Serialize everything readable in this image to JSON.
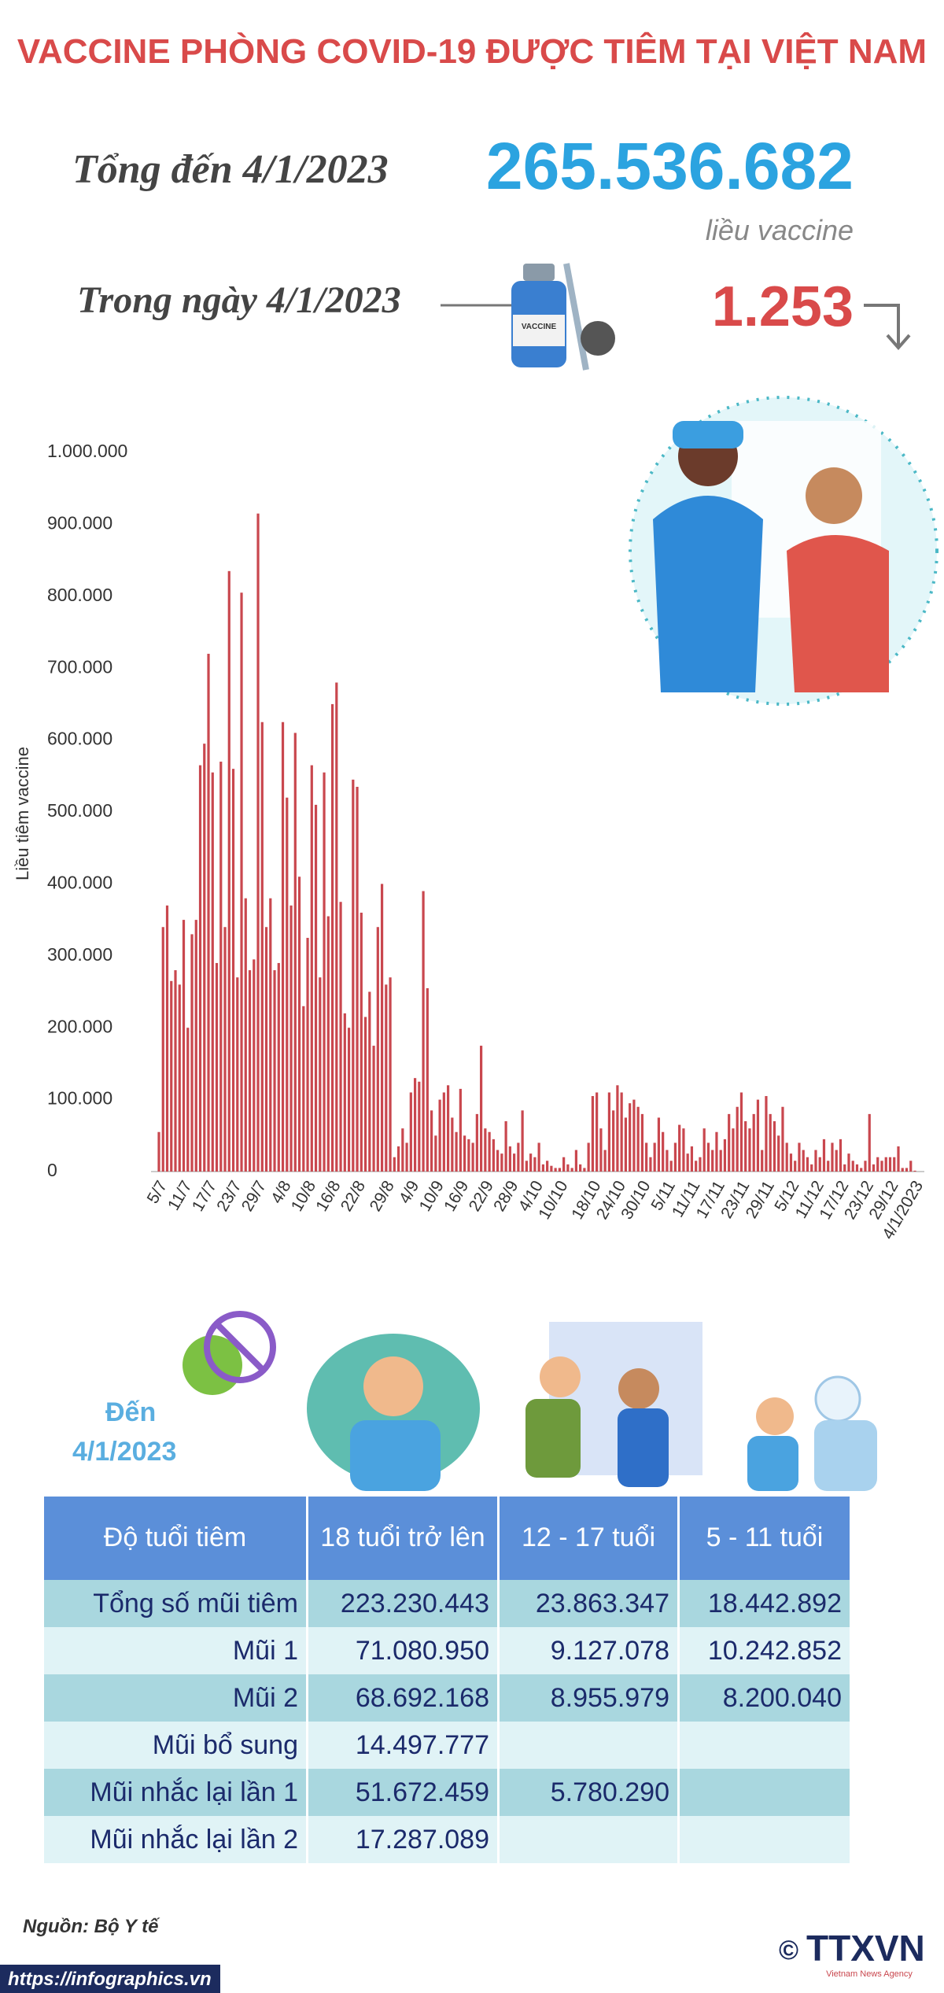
{
  "title": "VACCINE PHÒNG COVID-19 ĐƯỢC TIÊM TẠI VIỆT NAM",
  "summary": {
    "total_label": "Tổng đến 4/1/2023",
    "total_value": "265.536.682",
    "total_unit": "liều vaccine",
    "daily_label": "Trong ngày 4/1/2023",
    "daily_value": "1.253"
  },
  "illustration": {
    "vial_label": "VACCINE"
  },
  "chart_data": {
    "type": "bar",
    "y_label": "Liều tiêm vaccine",
    "color": "#c9474e",
    "ylim": [
      0,
      1000000
    ],
    "yticks": [
      0,
      {
        "value": 100000,
        "label": "100.000"
      },
      {
        "value": 200000,
        "label": "200.000"
      },
      {
        "value": 300000,
        "label": "300.000"
      },
      {
        "value": 400000,
        "label": "400.000"
      },
      {
        "value": 500000,
        "label": "500.000"
      },
      {
        "value": 600000,
        "label": "600.000"
      },
      {
        "value": 700000,
        "label": "700.000"
      },
      {
        "value": 800000,
        "label": "800.000"
      },
      {
        "value": 900000,
        "label": "900.000"
      },
      {
        "value": 1000000,
        "label": "1.000.000"
      }
    ],
    "categories": [
      "5/7",
      null,
      null,
      null,
      null,
      null,
      "11/7",
      null,
      null,
      null,
      null,
      null,
      "17/7",
      null,
      null,
      null,
      null,
      null,
      "23/7",
      null,
      null,
      null,
      null,
      null,
      "29/7",
      null,
      null,
      null,
      null,
      null,
      "4/8",
      null,
      null,
      null,
      null,
      null,
      "10/8",
      null,
      null,
      null,
      null,
      null,
      "16/8",
      null,
      null,
      null,
      null,
      null,
      "22/8",
      null,
      null,
      null,
      null,
      null,
      null,
      "29/8",
      null,
      null,
      null,
      null,
      null,
      "4/9",
      null,
      null,
      null,
      null,
      null,
      "10/9",
      null,
      null,
      null,
      null,
      null,
      "16/9",
      null,
      null,
      null,
      null,
      null,
      "22/9",
      null,
      null,
      null,
      null,
      null,
      "28/9",
      null,
      null,
      null,
      null,
      null,
      "4/10",
      null,
      null,
      null,
      null,
      null,
      "10/10",
      null,
      null,
      null,
      null,
      null,
      null,
      null,
      "18/10",
      null,
      null,
      null,
      null,
      null,
      "24/10",
      null,
      null,
      null,
      null,
      null,
      "30/10",
      null,
      null,
      null,
      null,
      null,
      "5/11",
      null,
      null,
      null,
      null,
      null,
      "11/11",
      null,
      null,
      null,
      null,
      null,
      "17/11",
      null,
      null,
      null,
      null,
      null,
      "23/11",
      null,
      null,
      null,
      null,
      null,
      "29/11",
      null,
      null,
      null,
      null,
      null,
      "5/12",
      null,
      null,
      null,
      null,
      null,
      "11/12",
      null,
      null,
      null,
      null,
      null,
      "17/12",
      null,
      null,
      null,
      null,
      null,
      "23/12",
      null,
      null,
      null,
      null,
      null,
      "29/12",
      null,
      null,
      null,
      null,
      null,
      "4/1/2023"
    ],
    "values": [
      55000,
      340000,
      370000,
      265000,
      280000,
      260000,
      350000,
      200000,
      330000,
      350000,
      565000,
      595000,
      720000,
      555000,
      290000,
      570000,
      340000,
      835000,
      560000,
      270000,
      805000,
      380000,
      280000,
      295000,
      915000,
      625000,
      340000,
      380000,
      280000,
      290000,
      625000,
      520000,
      370000,
      610000,
      410000,
      230000,
      325000,
      565000,
      510000,
      270000,
      555000,
      355000,
      650000,
      680000,
      375000,
      220000,
      200000,
      545000,
      535000,
      360000,
      215000,
      250000,
      175000,
      340000,
      400000,
      260000,
      270000,
      20000,
      35000,
      60000,
      40000,
      110000,
      130000,
      125000,
      390000,
      255000,
      85000,
      50000,
      100000,
      110000,
      120000,
      75000,
      55000,
      115000,
      50000,
      45000,
      40000,
      80000,
      175000,
      60000,
      55000,
      45000,
      30000,
      25000,
      70000,
      35000,
      25000,
      40000,
      85000,
      15000,
      25000,
      20000,
      40000,
      10000,
      15000,
      8000,
      5000,
      5000,
      20000,
      10000,
      5000,
      30000,
      10000,
      5000,
      40000,
      105000,
      110000,
      60000,
      30000,
      110000,
      85000,
      120000,
      110000,
      75000,
      95000,
      100000,
      90000,
      80000,
      40000,
      20000,
      40000,
      75000,
      55000,
      30000,
      15000,
      40000,
      65000,
      60000,
      25000,
      35000,
      15000,
      20000,
      60000,
      40000,
      30000,
      55000,
      30000,
      45000,
      80000,
      60000,
      90000,
      110000,
      70000,
      60000,
      80000,
      100000,
      30000,
      105000,
      80000,
      70000,
      50000,
      90000,
      40000,
      25000,
      15000,
      40000,
      30000,
      20000,
      10000,
      30000,
      20000,
      45000,
      15000,
      40000,
      30000,
      45000,
      10000,
      25000,
      15000,
      10000,
      5000,
      15000,
      80000,
      10000,
      20000,
      15000,
      20000,
      20000,
      20000,
      35000,
      5000,
      5000,
      15000,
      1253
    ]
  },
  "table_section": {
    "as_of": [
      "Đến",
      "4/1/2023"
    ]
  },
  "table": {
    "header": [
      "Độ tuổi tiêm",
      "18 tuổi trở lên",
      "12 - 17 tuổi",
      "5 - 11 tuổi"
    ],
    "rows": [
      [
        "Tổng số mũi tiêm",
        "223.230.443",
        "23.863.347",
        "18.442.892"
      ],
      [
        "Mũi 1",
        "71.080.950",
        "9.127.078",
        "10.242.852"
      ],
      [
        "Mũi 2",
        "68.692.168",
        "8.955.979",
        "8.200.040"
      ],
      [
        "Mũi bổ sung",
        "14.497.777"
      ],
      [
        "Mũi nhắc lại lần 1",
        "51.672.459",
        "5.780.290"
      ],
      [
        "Mũi nhắc lại lần 2",
        "17.287.089"
      ]
    ]
  },
  "footer": {
    "source": "Nguồn: Bộ Y tế",
    "url": "https://infographics.vn",
    "copyright": "©",
    "logo": "TTXVN",
    "agency": "Vietnam News Agency"
  }
}
